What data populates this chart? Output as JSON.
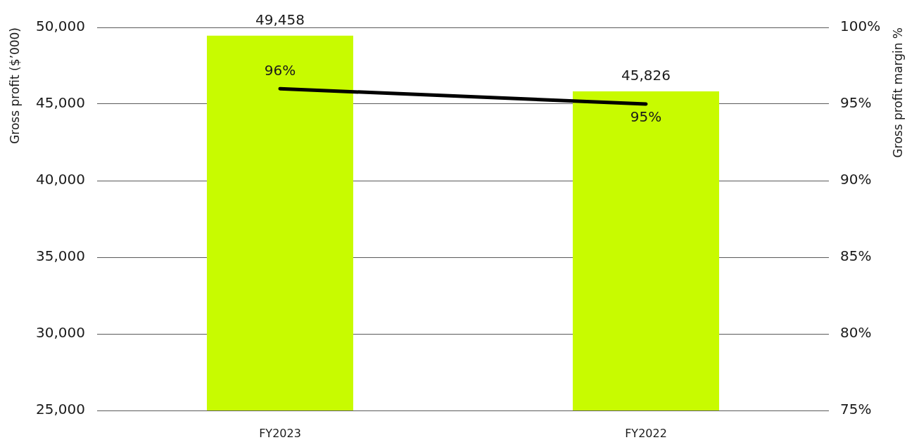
{
  "chart_data": {
    "type": "bar",
    "categories": [
      "FY2023",
      "FY2022"
    ],
    "series": [
      {
        "color": "#c8fb00",
        "values": [
          49458,
          45826
        ],
        "value_labels": [
          "49,458",
          "45,826"
        ]
      },
      {
        "type": "line",
        "color": "#000000",
        "axis": "y2",
        "values": [
          96,
          95
        ],
        "value_labels": [
          "96%",
          "95%"
        ]
      }
    ],
    "ylabel": "Gross profit ($’000)",
    "y2label": "Gross profit margin %",
    "ylim": [
      25000,
      50000
    ],
    "yticks": [
      {
        "value": 25000,
        "label": "25,000"
      },
      {
        "value": 30000,
        "label": "30,000"
      },
      {
        "value": 35000,
        "label": "35,000"
      },
      {
        "value": 40000,
        "label": "40,000"
      },
      {
        "value": 45000,
        "label": "45,000"
      },
      {
        "value": 50000,
        "label": "50,000"
      }
    ],
    "y2lim": [
      75,
      100
    ],
    "y2ticks": [
      {
        "value": 75,
        "label": "75%"
      },
      {
        "value": 80,
        "label": "80%"
      },
      {
        "value": 85,
        "label": "85%"
      },
      {
        "value": 90,
        "label": "90%"
      },
      {
        "value": 95,
        "label": "95%"
      },
      {
        "value": 100,
        "label": "100%"
      }
    ],
    "grid": "y",
    "line_style": "solid"
  }
}
